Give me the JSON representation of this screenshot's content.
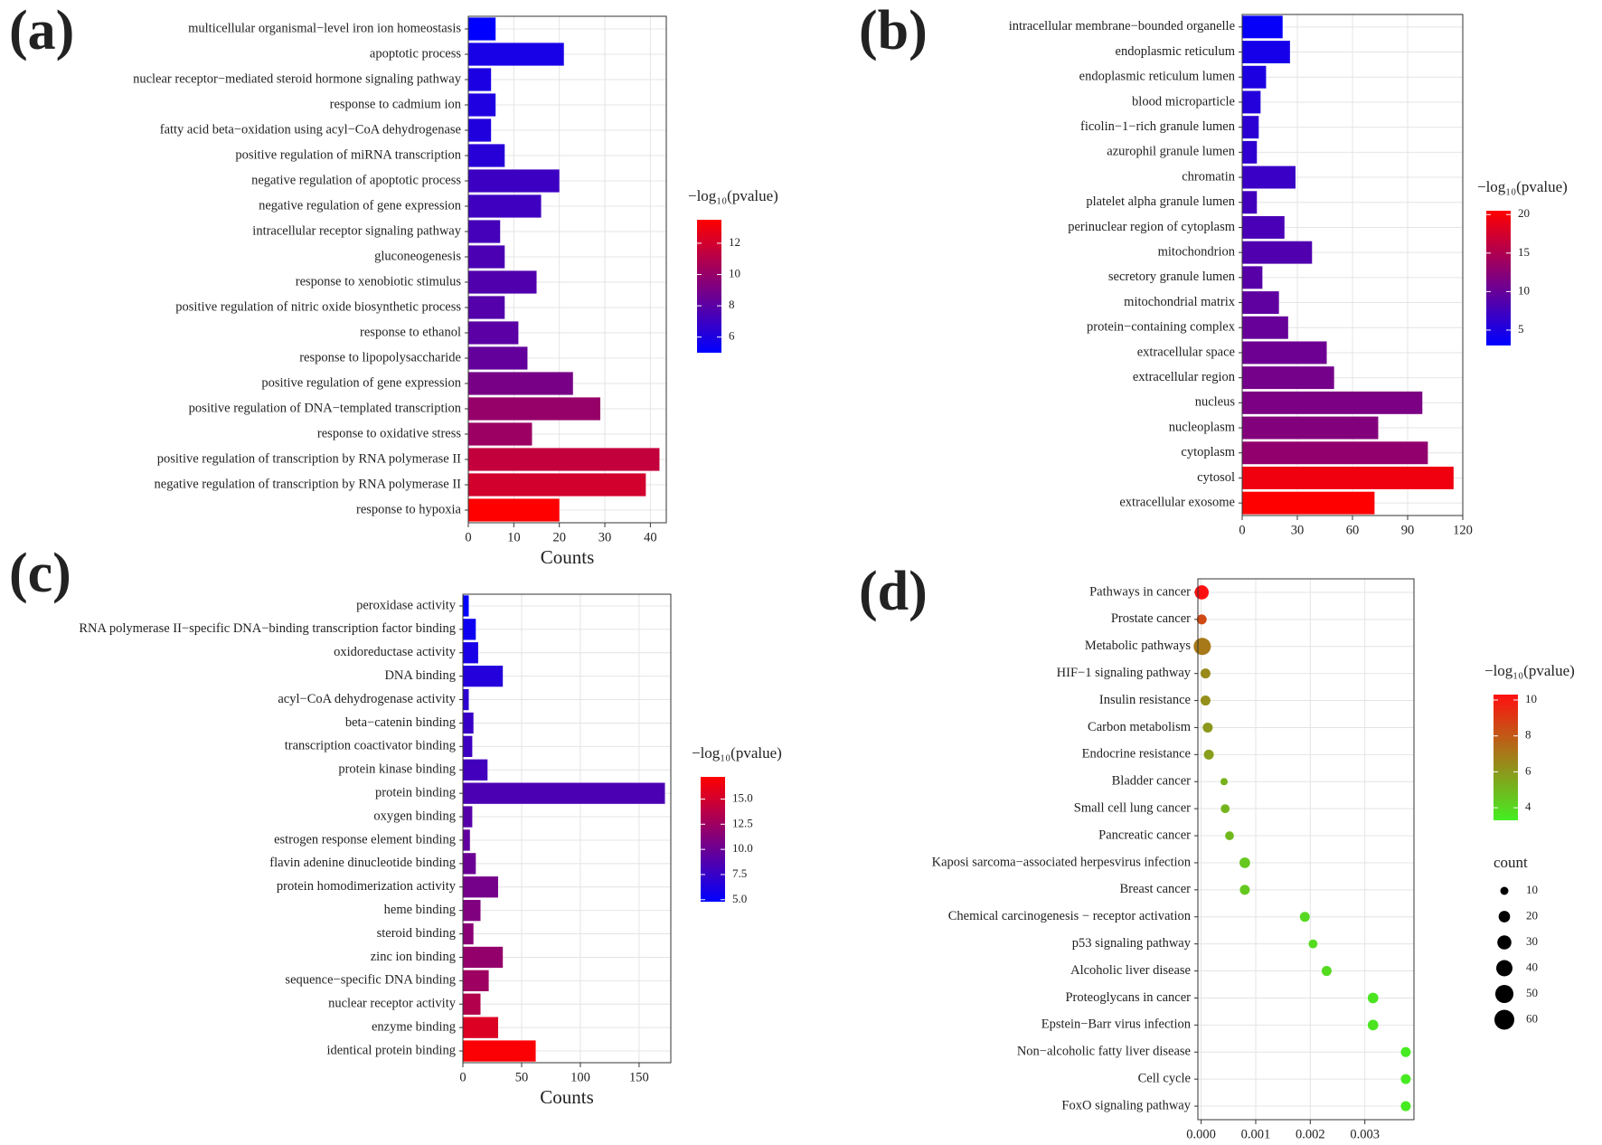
{
  "chart_data": [
    {
      "type": "bar",
      "label": "(a)",
      "xlabel": "Counts",
      "categories": [
        "multicellular organismal−level iron ion homeostasis",
        "apoptotic process",
        "nuclear receptor−mediated steroid hormone signaling pathway",
        "response to cadmium ion",
        "fatty acid beta−oxidation using acyl−CoA dehydrogenase",
        "positive regulation of miRNA transcription",
        "negative regulation of apoptotic process",
        "negative regulation of gene expression",
        "intracellular receptor signaling pathway",
        "gluconeogenesis",
        "response to xenobiotic stimulus",
        "positive regulation of nitric oxide biosynthetic process",
        "response to ethanol",
        "response to lipopolysaccharide",
        "positive regulation of gene expression",
        "positive regulation of DNA−templated transcription",
        "response to oxidative stress",
        "positive regulation of transcription by RNA polymerase II",
        "negative regulation of transcription by RNA polymerase II",
        "response to hypoxia"
      ],
      "values": [
        6,
        21,
        5,
        6,
        5,
        8,
        20,
        16,
        7,
        8,
        15,
        8,
        11,
        13,
        23,
        29,
        14,
        42,
        39,
        20
      ],
      "neglog10p": [
        5.0,
        5.8,
        5.9,
        6.0,
        6.1,
        6.3,
        7.0,
        7.1,
        7.3,
        7.5,
        7.7,
        7.8,
        8.0,
        8.3,
        9.0,
        10.0,
        10.2,
        11.5,
        12.0,
        13.5
      ],
      "xlim": [
        0,
        43.5
      ],
      "xticks": [
        0,
        10,
        20,
        30,
        40
      ],
      "colorbar": {
        "title": "−log₁₀(pvalue)",
        "lim": [
          5.0,
          13.5
        ],
        "ticks": [
          6,
          8,
          10,
          12
        ],
        "low_color": "#0000ff",
        "high_color": "#ff0000"
      }
    },
    {
      "type": "bar",
      "label": "(b)",
      "categories": [
        "intracellular membrane−bounded organelle",
        "endoplasmic reticulum",
        "endoplasmic reticulum lumen",
        "blood microparticle",
        "ficolin−1−rich granule lumen",
        "azurophil granule lumen",
        "chromatin",
        "platelet alpha granule lumen",
        "perinuclear region of cytoplasm",
        "mitochondrion",
        "secretory granule lumen",
        "mitochondrial matrix",
        "protein−containing complex",
        "extracellular space",
        "extracellular region",
        "nucleus",
        "nucleoplasm",
        "cytoplasm",
        "cytosol",
        "extracellular exosome"
      ],
      "values": [
        22,
        26,
        13,
        10,
        9,
        8,
        29,
        8,
        23,
        38,
        11,
        20,
        25,
        46,
        50,
        98,
        74,
        101,
        115,
        72
      ],
      "neglog10p": [
        3.5,
        4.5,
        5,
        5.5,
        6,
        6.2,
        7,
        7.5,
        8,
        8.5,
        9,
        9.5,
        10,
        10.5,
        11,
        11.5,
        12,
        13,
        19.5,
        20.5
      ],
      "xlim": [
        0,
        120
      ],
      "xticks": [
        0,
        30,
        60,
        90,
        120
      ],
      "colorbar": {
        "title": "−log₁₀(pvalue)",
        "lim": [
          3.0,
          20.5
        ],
        "ticks": [
          5,
          10,
          15,
          20
        ],
        "low_color": "#0000ff",
        "high_color": "#ff0000"
      }
    },
    {
      "type": "bar",
      "label": "(c)",
      "xlabel": "Counts",
      "categories": [
        "peroxidase activity",
        "RNA polymerase II−specific DNA−binding transcription factor binding",
        "oxidoreductase activity",
        "DNA binding",
        "acyl−CoA dehydrogenase activity",
        "beta−catenin binding",
        "transcription coactivator binding",
        "protein kinase binding",
        "protein binding",
        "oxygen binding",
        "estrogen response element binding",
        "flavin adenine dinucleotide binding",
        "protein homodimerization activity",
        "heme binding",
        "steroid binding",
        "zinc ion binding",
        "sequence−specific DNA binding",
        "nuclear receptor activity",
        "enzyme binding",
        "identical protein binding"
      ],
      "values": [
        5,
        11,
        13,
        34,
        5,
        9,
        8,
        21,
        172,
        8,
        6,
        11,
        30,
        15,
        9,
        34,
        22,
        15,
        30,
        62
      ],
      "neglog10p": [
        5,
        5.5,
        6,
        6.5,
        7,
        7.5,
        7.8,
        8,
        8.5,
        9,
        9.5,
        10,
        10.5,
        11,
        11.5,
        12,
        12.5,
        13.5,
        15.5,
        17
      ],
      "xlim": [
        0,
        177
      ],
      "xticks": [
        0,
        50,
        100,
        150
      ],
      "colorbar": {
        "title": "−log₁₀(pvalue)",
        "lim": [
          4.8,
          17.2
        ],
        "ticks": [
          {
            "value": 5,
            "label": "5.0"
          },
          {
            "value": 7.5,
            "label": "7.5"
          },
          {
            "value": 10,
            "label": "10.0"
          },
          {
            "value": 12.5,
            "label": "12.5"
          },
          {
            "value": 15,
            "label": "15.0"
          }
        ],
        "low_color": "#0000ff",
        "high_color": "#ff0000"
      }
    },
    {
      "type": "dot",
      "label": "(d)",
      "categories": [
        "Pathways in cancer",
        "Prostate cancer",
        "Metabolic pathways",
        "HIF−1 signaling pathway",
        "Insulin resistance",
        "Carbon metabolism",
        "Endocrine resistance",
        "Bladder cancer",
        "Small cell lung cancer",
        "Pancreatic cancer",
        "Kaposi sarcoma−associated herpesvirus infection",
        "Breast cancer",
        "Chemical carcinogenesis − receptor activation",
        "p53 signaling pathway",
        "Alcoholic liver disease",
        "Proteoglycans in cancer",
        "Epstein−Barr virus infection",
        "Non−alcoholic fatty liver disease",
        "Cell cycle",
        "FoxO signaling pathway"
      ],
      "values": [
        1e-05,
        1e-05,
        2e-05,
        8e-05,
        8e-05,
        0.00012,
        0.00014,
        0.00042,
        0.00044,
        0.00052,
        0.0008,
        0.0008,
        0.0019,
        0.00205,
        0.0023,
        0.00315,
        0.00315,
        0.00375,
        0.00375,
        0.00375
      ],
      "sizes": [
        30,
        15,
        45,
        15,
        15,
        15,
        15,
        8,
        12,
        12,
        17,
        15,
        15,
        12,
        15,
        17,
        17,
        15,
        15,
        15
      ],
      "neglog10p": [
        10.3,
        8.5,
        7,
        6.5,
        6.3,
        6.0,
        5.8,
        5.2,
        5.1,
        5.0,
        4.5,
        4.5,
        4.0,
        3.9,
        3.9,
        3.6,
        3.6,
        3.4,
        3.4,
        3.4
      ],
      "xlim": [
        -6e-05,
        0.0039
      ],
      "xticks": [
        {
          "value": 0,
          "label": "0.000"
        },
        {
          "value": 0.001,
          "label": "0.001"
        },
        {
          "value": 0.002,
          "label": "0.002"
        },
        {
          "value": 0.003,
          "label": "0.003"
        }
      ],
      "colorbar": {
        "title": "−log₁₀(pvalue)",
        "lim": [
          3.3,
          10.3
        ],
        "ticks": [
          4,
          6,
          8,
          10
        ],
        "low_color": "#44ee22",
        "high_color": "#ff1010"
      },
      "size_legend": {
        "title": "count",
        "values": [
          10,
          20,
          30,
          40,
          50,
          60
        ]
      }
    }
  ]
}
